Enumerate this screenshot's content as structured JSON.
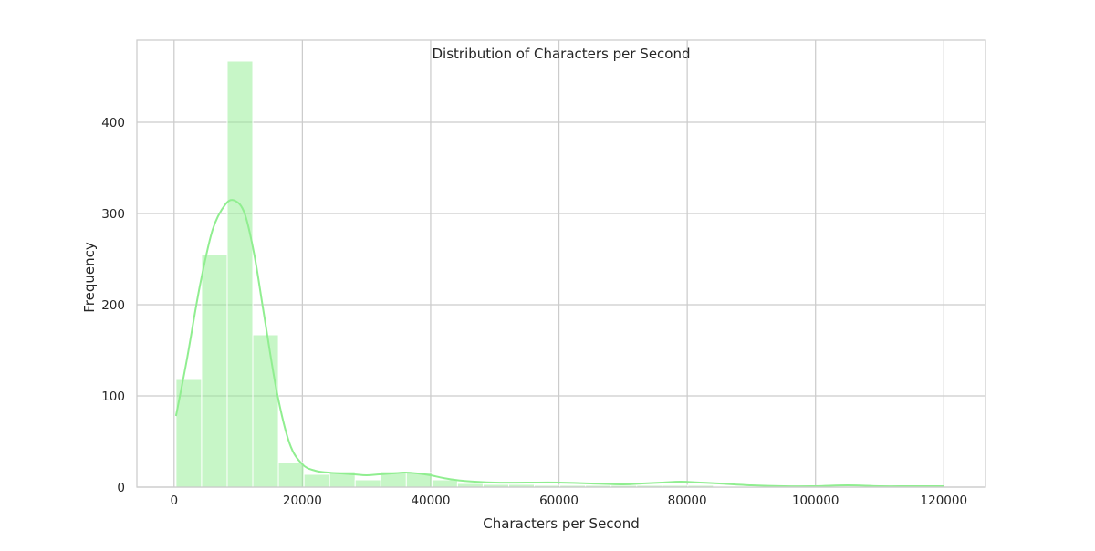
{
  "chart_data": {
    "type": "bar",
    "title": "Distribution of Characters per Second",
    "xlabel": "Characters per Second",
    "ylabel": "Frequency",
    "xlim": [
      -5800,
      126500
    ],
    "ylim": [
      0,
      490
    ],
    "x_ticks": [
      0,
      20000,
      40000,
      60000,
      80000,
      100000,
      120000
    ],
    "x_tick_labels": [
      "0",
      "20000",
      "40000",
      "60000",
      "80000",
      "100000",
      "120000"
    ],
    "y_ticks": [
      0,
      100,
      200,
      300,
      400
    ],
    "y_tick_labels": [
      "0",
      "100",
      "200",
      "300",
      "400"
    ],
    "grid": true,
    "bins": {
      "start": 300,
      "width": 3990,
      "counts": [
        118,
        255,
        467,
        167,
        27,
        14,
        17,
        8,
        17,
        16,
        8,
        4,
        3,
        3,
        2,
        2,
        2,
        2,
        2,
        2,
        2,
        1,
        1,
        1,
        0,
        0,
        0,
        1,
        0,
        1
      ]
    },
    "kde": {
      "x": [
        300,
        2000,
        4000,
        6000,
        8000,
        9500,
        11000,
        12500,
        14000,
        16000,
        18000,
        20000,
        22000,
        24000,
        26000,
        28000,
        30000,
        32000,
        34000,
        36000,
        38000,
        40000,
        42000,
        45000,
        50000,
        55000,
        60000,
        65000,
        70000,
        73000,
        76000,
        79000,
        82000,
        85000,
        90000,
        95000,
        100000,
        105000,
        110000,
        115000,
        120000
      ],
      "y": [
        78,
        140,
        220,
        282,
        310,
        314,
        300,
        255,
        190,
        105,
        48,
        25,
        18,
        16,
        15,
        14,
        13,
        14,
        15,
        16,
        15,
        13,
        10,
        7,
        5,
        5,
        5,
        4,
        3,
        4,
        5,
        6,
        5,
        4,
        2,
        1,
        1,
        2,
        1,
        1,
        1
      ]
    },
    "colors": {
      "bar_fill": "#90ee90",
      "bar_edge": "#ffffff",
      "kde_line": "#90ee90",
      "grid": "#cccccc",
      "frame": "#cccccc"
    }
  }
}
